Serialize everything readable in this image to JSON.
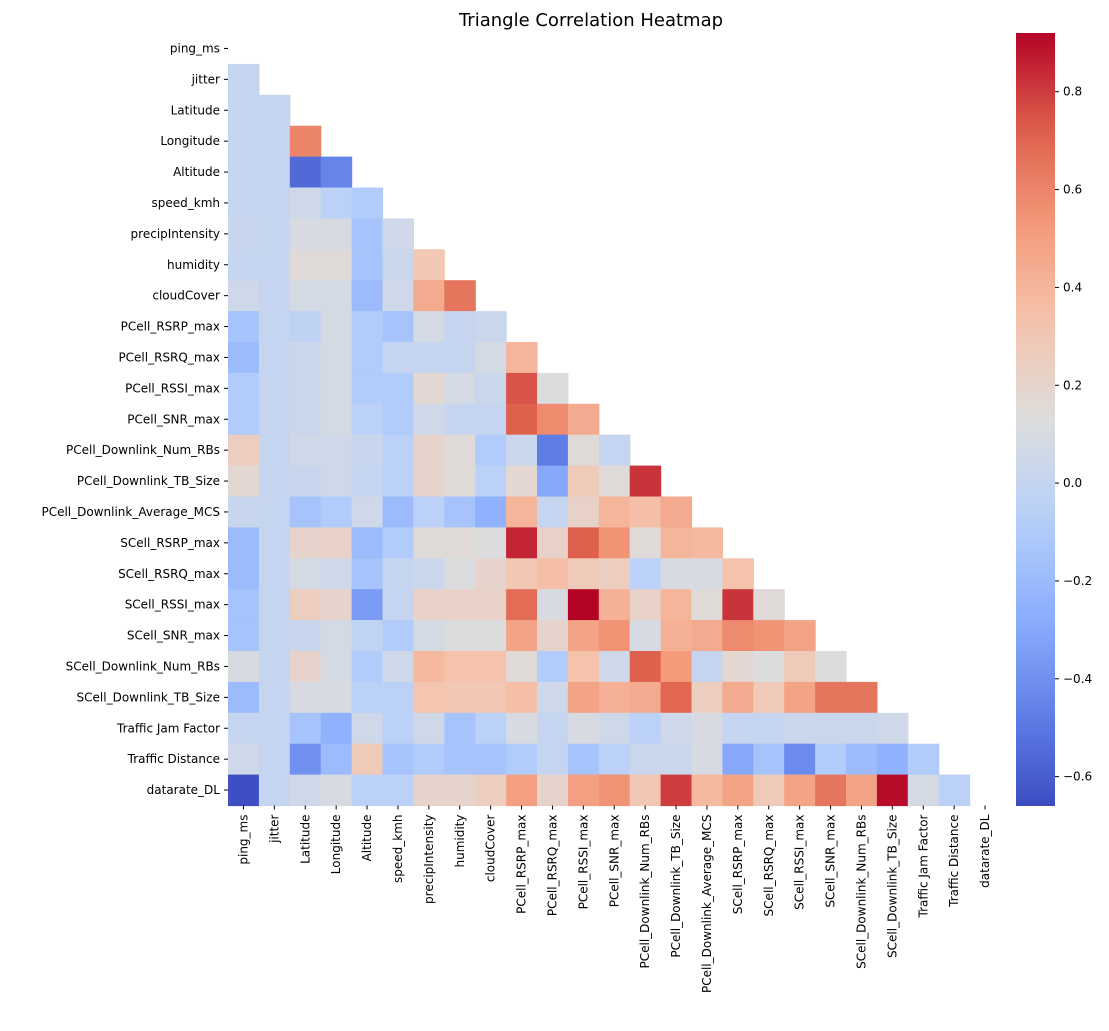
{
  "chart_data": {
    "type": "heatmap",
    "title": "Triangle Correlation Heatmap",
    "variables": [
      "ping_ms",
      "jitter",
      "Latitude",
      "Longitude",
      "Altitude",
      "speed_kmh",
      "precipIntensity",
      "humidity",
      "cloudCover",
      "PCell_RSRP_max",
      "PCell_RSRQ_max",
      "PCell_RSSI_max",
      "PCell_SNR_max",
      "PCell_Downlink_Num_RBs",
      "PCell_Downlink_TB_Size",
      "PCell_Downlink_Average_MCS",
      "SCell_RSRP_max",
      "SCell_RSRQ_max",
      "SCell_RSSI_max",
      "SCell_SNR_max",
      "SCell_Downlink_Num_RBs",
      "SCell_Downlink_TB_Size",
      "Traffic Jam Factor",
      "Traffic Distance",
      "datarate_DL"
    ],
    "mask": "upper triangle and diagonal hidden",
    "colormap": "coolwarm",
    "vmin": -0.66,
    "vmax": 0.92,
    "colorbar_ticks": [
      -0.6,
      -0.4,
      -0.2,
      0.0,
      0.2,
      0.4,
      0.6,
      0.8
    ],
    "colorbar_tick_labels": [
      "−0.6",
      "−0.4",
      "−0.2",
      "0.0",
      "0.2",
      "0.4",
      "0.6",
      "0.8"
    ],
    "lower_triangle": [
      [],
      [
        0.0
      ],
      [
        0.0,
        0.0
      ],
      [
        0.0,
        0.0,
        0.6
      ],
      [
        0.0,
        0.0,
        -0.55,
        -0.45
      ],
      [
        0.0,
        0.0,
        0.05,
        -0.05,
        -0.1
      ],
      [
        0.02,
        0.0,
        0.1,
        0.1,
        -0.15,
        0.05
      ],
      [
        0.0,
        0.0,
        0.15,
        0.15,
        -0.15,
        0.03,
        0.3
      ],
      [
        0.05,
        0.0,
        0.08,
        0.08,
        -0.2,
        0.05,
        0.45,
        0.65
      ],
      [
        -0.15,
        0.0,
        -0.03,
        0.08,
        -0.1,
        -0.15,
        0.08,
        0.0,
        0.03
      ],
      [
        -0.2,
        0.0,
        0.03,
        0.08,
        -0.1,
        0.0,
        0.0,
        0.0,
        0.08,
        0.4
      ],
      [
        -0.1,
        0.0,
        0.03,
        0.08,
        -0.1,
        -0.1,
        0.18,
        0.08,
        0.03,
        0.75,
        0.12
      ],
      [
        -0.1,
        0.0,
        0.03,
        0.08,
        -0.05,
        -0.1,
        0.05,
        0.0,
        0.0,
        0.72,
        0.58,
        0.45
      ],
      [
        0.25,
        0.0,
        0.05,
        0.05,
        0.02,
        -0.05,
        0.2,
        0.15,
        -0.1,
        0.03,
        -0.48,
        0.15,
        0.0
      ],
      [
        0.18,
        0.0,
        0.02,
        0.05,
        0.0,
        -0.05,
        0.2,
        0.15,
        -0.05,
        0.18,
        -0.3,
        0.28,
        0.15,
        0.82
      ],
      [
        0.02,
        0.0,
        -0.15,
        -0.1,
        0.05,
        -0.2,
        -0.05,
        -0.15,
        -0.25,
        0.4,
        0.0,
        0.22,
        0.4,
        0.35,
        0.45
      ],
      [
        -0.2,
        0.0,
        0.2,
        0.22,
        -0.2,
        -0.1,
        0.15,
        0.15,
        0.12,
        0.85,
        0.22,
        0.72,
        0.55,
        0.15,
        0.4,
        0.38
      ],
      [
        -0.2,
        0.0,
        0.08,
        0.05,
        -0.15,
        0.0,
        0.03,
        0.12,
        0.2,
        0.3,
        0.35,
        0.28,
        0.25,
        -0.05,
        0.1,
        0.1,
        0.33
      ],
      [
        -0.15,
        0.0,
        0.25,
        0.2,
        -0.35,
        0.0,
        0.22,
        0.22,
        0.22,
        0.68,
        0.1,
        0.92,
        0.42,
        0.22,
        0.4,
        0.15,
        0.82,
        0.15
      ],
      [
        -0.15,
        0.0,
        0.02,
        0.08,
        -0.02,
        -0.1,
        0.08,
        0.12,
        0.12,
        0.48,
        0.2,
        0.48,
        0.55,
        0.1,
        0.42,
        0.45,
        0.58,
        0.55,
        0.48
      ],
      [
        0.1,
        0.0,
        0.2,
        0.08,
        -0.1,
        0.05,
        0.38,
        0.33,
        0.33,
        0.15,
        -0.1,
        0.33,
        0.05,
        0.72,
        0.52,
        0.0,
        0.18,
        0.12,
        0.28,
        0.12
      ],
      [
        -0.2,
        0.0,
        0.1,
        0.1,
        -0.05,
        -0.05,
        0.32,
        0.3,
        0.3,
        0.35,
        0.05,
        0.48,
        0.42,
        0.45,
        0.7,
        0.25,
        0.45,
        0.28,
        0.48,
        0.65,
        0.65
      ],
      [
        0.0,
        0.0,
        -0.15,
        -0.25,
        0.05,
        -0.05,
        0.05,
        -0.15,
        -0.05,
        0.1,
        0.0,
        0.1,
        0.05,
        -0.05,
        0.05,
        0.1,
        0.0,
        0.0,
        0.03,
        0.03,
        0.03,
        0.05
      ],
      [
        0.05,
        0.0,
        -0.4,
        -0.2,
        0.28,
        -0.15,
        -0.1,
        -0.15,
        -0.15,
        -0.1,
        0.0,
        -0.15,
        -0.05,
        0.03,
        0.03,
        0.1,
        -0.3,
        -0.15,
        -0.42,
        -0.1,
        -0.2,
        -0.25,
        -0.1
      ],
      [
        -0.65,
        0.0,
        0.05,
        0.1,
        -0.05,
        -0.05,
        0.2,
        0.2,
        0.25,
        0.5,
        0.2,
        0.5,
        0.55,
        0.3,
        0.8,
        0.38,
        0.48,
        0.28,
        0.48,
        0.65,
        0.48,
        0.9,
        0.08,
        -0.05
      ]
    ]
  }
}
